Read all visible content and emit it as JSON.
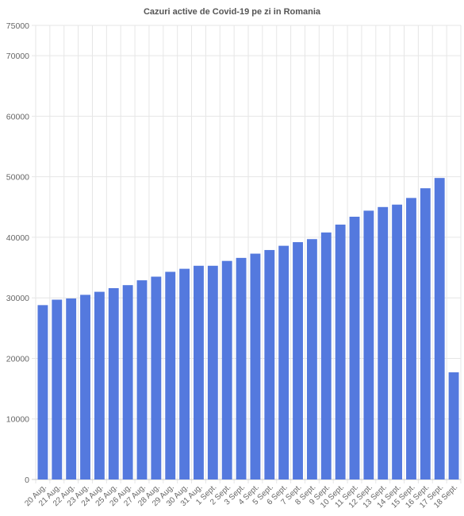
{
  "chart_data": {
    "type": "bar",
    "title": "Cazuri active de Covid-19 pe zi in Romania",
    "categories": [
      "20 Aug.",
      "21 Aug.",
      "22 Aug.",
      "23 Aug.",
      "24 Aug.",
      "25 Aug.",
      "26 Aug.",
      "27 Aug.",
      "28 Aug.",
      "29 Aug.",
      "30 Aug.",
      "31 Aug.",
      "1 Sept.",
      "2 Sept.",
      "3 Sept.",
      "4 Sept.",
      "5 Sept.",
      "6 Sept.",
      "7 Sept.",
      "8 Sept.",
      "9 Sept.",
      "10 Sept.",
      "11 Sept.",
      "12 Sept.",
      "13 Sept.",
      "14 Sept.",
      "15 Sept.",
      "16 Sept.",
      "17 Sept.",
      "18 Sept."
    ],
    "values": [
      28800,
      29700,
      29900,
      30500,
      31000,
      31600,
      32100,
      32900,
      33500,
      34300,
      34800,
      35300,
      35300,
      36100,
      36600,
      37300,
      37900,
      38600,
      39200,
      39700,
      40800,
      42100,
      43400,
      44400,
      45000,
      45400,
      46500,
      48100,
      49800,
      17700
    ],
    "ylim": [
      0,
      75000
    ],
    "yticks": [
      0,
      10000,
      20000,
      30000,
      40000,
      50000,
      60000,
      70000,
      75000
    ],
    "xlabel": "",
    "ylabel": "",
    "grid": true,
    "colors": {
      "bar": "#5479de",
      "grid": "#e6e6e6",
      "axis": "#c8c8c8",
      "text": "#666666"
    }
  }
}
